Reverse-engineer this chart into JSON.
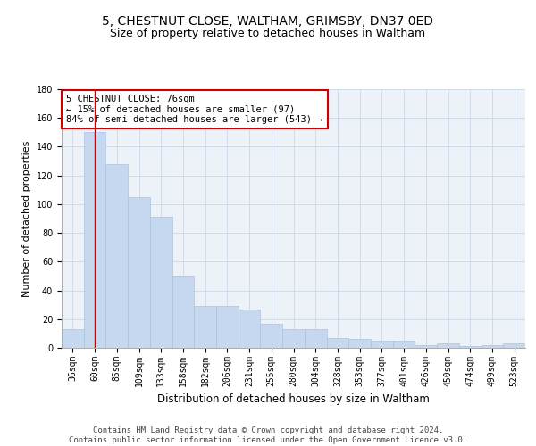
{
  "title1": "5, CHESTNUT CLOSE, WALTHAM, GRIMSBY, DN37 0ED",
  "title2": "Size of property relative to detached houses in Waltham",
  "xlabel": "Distribution of detached houses by size in Waltham",
  "ylabel": "Number of detached properties",
  "categories": [
    "36sqm",
    "60sqm",
    "85sqm",
    "109sqm",
    "133sqm",
    "158sqm",
    "182sqm",
    "206sqm",
    "231sqm",
    "255sqm",
    "280sqm",
    "304sqm",
    "328sqm",
    "353sqm",
    "377sqm",
    "401sqm",
    "426sqm",
    "450sqm",
    "474sqm",
    "499sqm",
    "523sqm"
  ],
  "values": [
    13,
    150,
    128,
    105,
    91,
    50,
    29,
    29,
    27,
    17,
    13,
    13,
    7,
    6,
    5,
    5,
    2,
    3,
    1,
    2,
    3
  ],
  "bar_color": "#c5d8f0",
  "bar_edge_color": "#a8c4e0",
  "vline_x": 1,
  "vline_color": "#cc0000",
  "annotation_box_text": "5 CHESTNUT CLOSE: 76sqm\n← 15% of detached houses are smaller (97)\n84% of semi-detached houses are larger (543) →",
  "annotation_box_color": "#cc0000",
  "ylim": [
    0,
    180
  ],
  "yticks": [
    0,
    20,
    40,
    60,
    80,
    100,
    120,
    140,
    160,
    180
  ],
  "grid_color": "#ccd8e8",
  "background_color": "#edf2f8",
  "footer_text": "Contains HM Land Registry data © Crown copyright and database right 2024.\nContains public sector information licensed under the Open Government Licence v3.0.",
  "title1_fontsize": 10,
  "title2_fontsize": 9,
  "xlabel_fontsize": 8.5,
  "ylabel_fontsize": 8,
  "tick_fontsize": 7,
  "annotation_fontsize": 7.5,
  "footer_fontsize": 6.5
}
